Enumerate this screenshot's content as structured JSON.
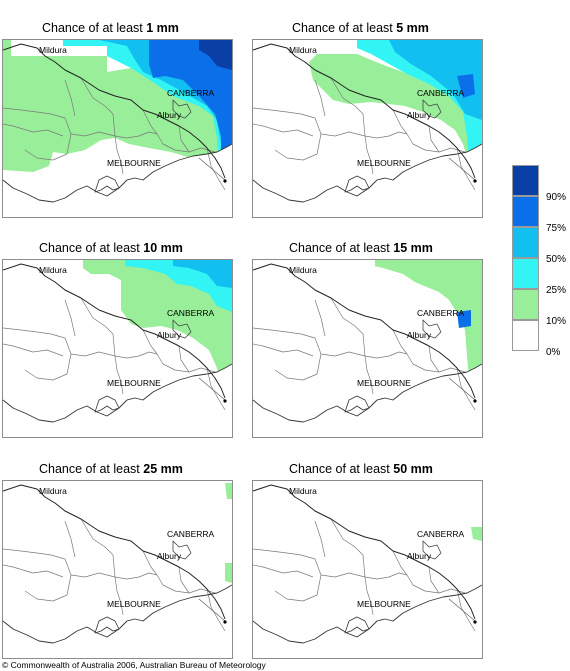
{
  "title_prefix": "Chance of at least",
  "panels": [
    {
      "amount": "1 mm"
    },
    {
      "amount": "5 mm"
    },
    {
      "amount": "10 mm"
    },
    {
      "amount": "15 mm"
    },
    {
      "amount": "25 mm"
    },
    {
      "amount": "50 mm"
    }
  ],
  "cities": {
    "mildura": "Mildura",
    "canberra": "CANBERRA",
    "albury": "Albury",
    "melbourne": "MELBOURNE"
  },
  "legend": {
    "labels": [
      "90%",
      "75%",
      "50%",
      "25%",
      "10%",
      "0%"
    ],
    "colors": [
      "#0a3fa6",
      "#0a6fe8",
      "#11c0f0",
      "#33f4f4",
      "#99ee99",
      "#ffffff"
    ]
  },
  "copyright": "© Commonwealth of Australia 2006, Australian Bureau of Meteorology"
}
